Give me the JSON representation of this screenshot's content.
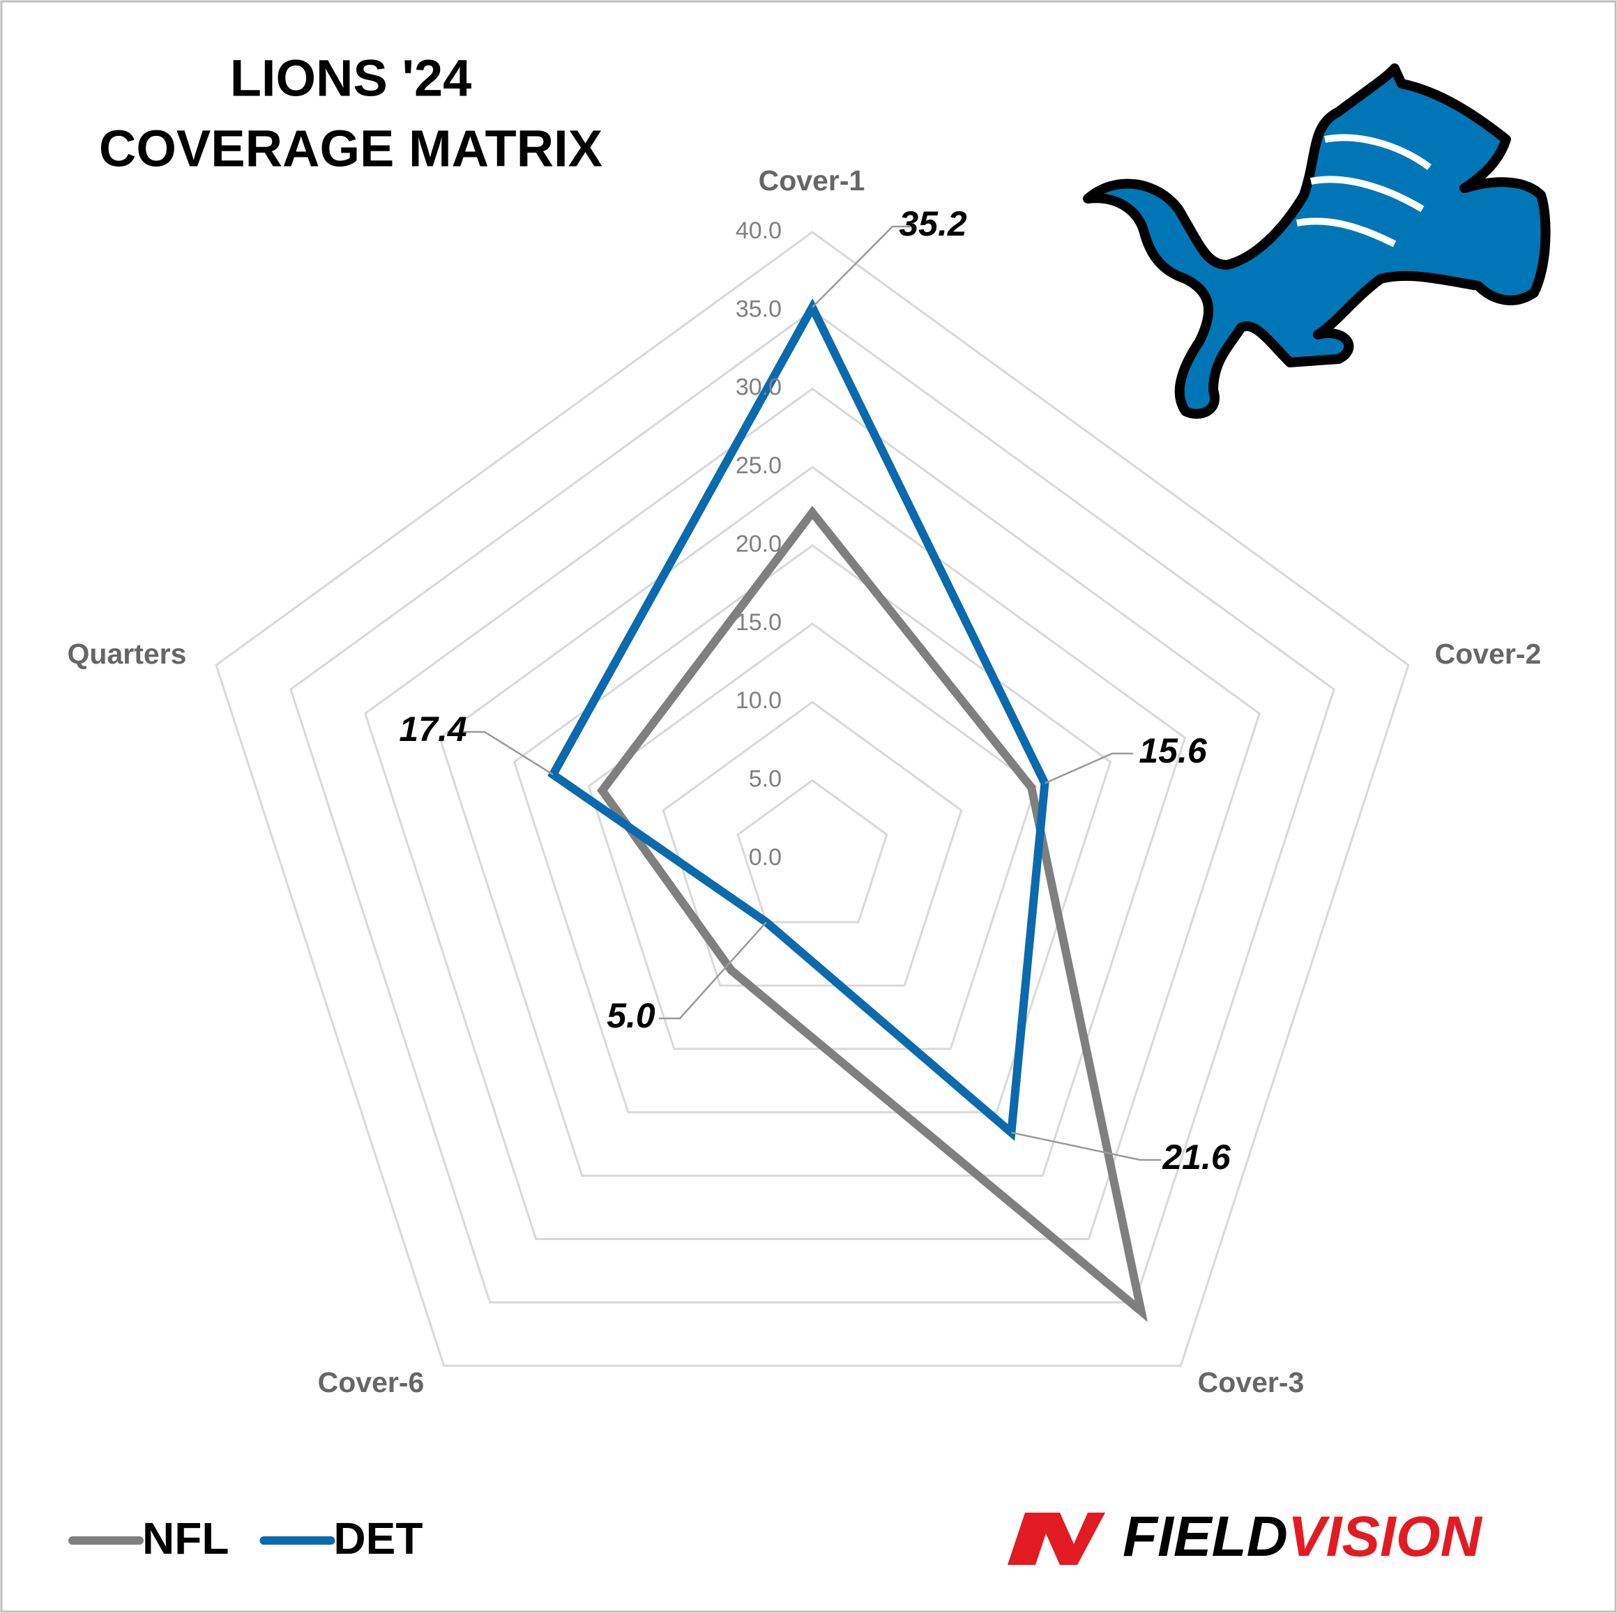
{
  "chart_data": {
    "type": "radar",
    "title": [
      "LIONS '24",
      "COVERAGE MATRIX"
    ],
    "categories": [
      "Cover-1",
      "Cover-2",
      "Cover-3",
      "Cover-6",
      "Quarters"
    ],
    "series": [
      {
        "name": "NFL",
        "color": "#7f7f7f",
        "values": [
          22.1,
          14.7,
          35.7,
          8.8,
          14.1
        ]
      },
      {
        "name": "DET",
        "color": "#0a6aad",
        "values": [
          35.2,
          15.6,
          21.6,
          5.0,
          17.4
        ],
        "value_labels": [
          "35.2",
          "15.6",
          "21.6",
          "5.0",
          "17.4"
        ]
      }
    ],
    "ylim": [
      0,
      40
    ],
    "yticks": [
      {
        "value": 0,
        "label": "0.0"
      },
      {
        "value": 5,
        "label": "5.0"
      },
      {
        "value": 10,
        "label": "10.0"
      },
      {
        "value": 15,
        "label": "15.0"
      },
      {
        "value": 20,
        "label": "20.0"
      },
      {
        "value": 25,
        "label": "25.0"
      },
      {
        "value": 30,
        "label": "30.0"
      },
      {
        "value": 35,
        "label": "35.0"
      },
      {
        "value": 40,
        "label": "40.0"
      }
    ],
    "grid": true,
    "legend": "bottom-left"
  },
  "brand": [
    "FIELD",
    "VISION"
  ]
}
